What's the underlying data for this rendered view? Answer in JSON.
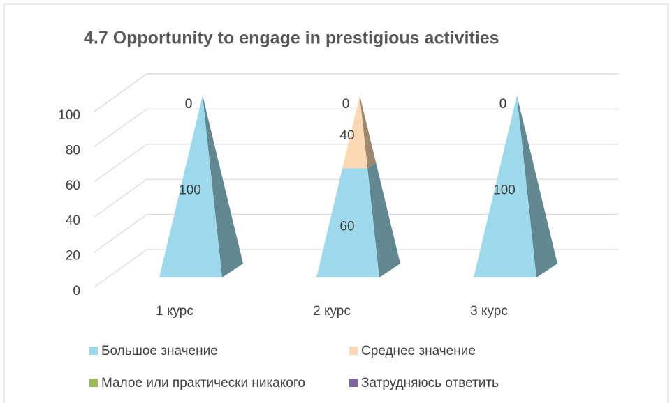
{
  "chart_data": {
    "type": "pyramid",
    "title": "4.7 Opportunity to engage in prestigious activities",
    "categories": [
      "1 курс",
      "2 курс",
      "3 курс"
    ],
    "series": [
      {
        "name": "Большое значение",
        "color": "#9dd9ea",
        "values": [
          100,
          60,
          100
        ]
      },
      {
        "name": "Среднее значение",
        "color": "#fcd9b5",
        "values": [
          0,
          40,
          0
        ]
      },
      {
        "name": "Малое или практически никакого",
        "color": "#9bbb59",
        "values": [
          0,
          0,
          0
        ]
      },
      {
        "name": "Затрудняюсь ответить",
        "color": "#8064a2",
        "values": [
          0,
          0,
          0
        ]
      }
    ],
    "ylim": [
      0,
      100
    ],
    "yticks": [
      0,
      20,
      40,
      60,
      80,
      100
    ],
    "grid": true,
    "stacked": true
  }
}
